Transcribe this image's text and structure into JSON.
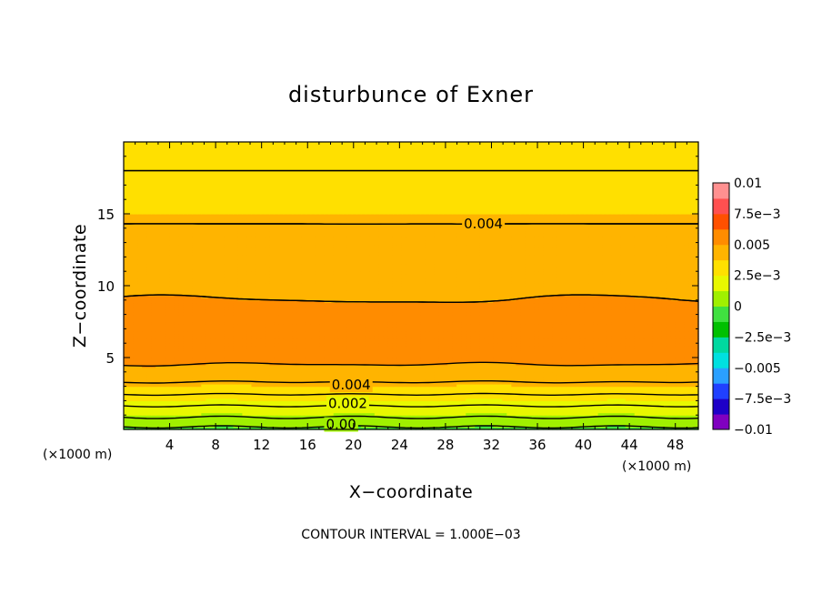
{
  "chart_data": {
    "type": "contour",
    "title": "disturbunce of Exner",
    "xlabel": "X−coordinate",
    "ylabel": "Z−coordinate",
    "x_unit": "(×1000 m)",
    "y_unit": "(×1000 m)",
    "xlim": [
      0,
      50
    ],
    "ylim": [
      0,
      20
    ],
    "x_ticks": [
      4,
      8,
      12,
      16,
      20,
      24,
      28,
      32,
      36,
      40,
      44,
      48
    ],
    "y_ticks": [
      5,
      10,
      15
    ],
    "contour_interval_text": "CONTOUR INTERVAL = 1.000E−03",
    "colorbar": {
      "labels": [
        "0.01",
        "7.5e−3",
        "0.005",
        "2.5e−3",
        "0",
        "−2.5e−3",
        "−0.005",
        "−7.5e−3",
        "−0.01"
      ],
      "values": [
        0.01,
        0.0075,
        0.005,
        0.0025,
        0,
        -0.0025,
        -0.005,
        -0.0075,
        -0.01
      ],
      "range": [
        -0.01,
        0.01
      ],
      "levels": 16
    },
    "contour_labels": [
      {
        "text": "0.004",
        "x": 29.6,
        "z": 14.3
      },
      {
        "text": "0.004",
        "x": 18.1,
        "z": 3.1
      },
      {
        "text": "0.002",
        "x": 17.8,
        "z": 1.8
      },
      {
        "text": "0.00",
        "x": 17.6,
        "z": 0.35
      }
    ],
    "profile": {
      "z": [
        0,
        0.3,
        0.6,
        1.0,
        1.4,
        1.8,
        2.2,
        2.6,
        3.0,
        3.5,
        4.0,
        4.8,
        5.5,
        6.2,
        7.0,
        8.0,
        9.0,
        10.5,
        11.5,
        12.5,
        13.5,
        14.3,
        15.5,
        17.0,
        18.0,
        19.0,
        20.0
      ],
      "value": [
        -0.0003,
        0.0002,
        0.0007,
        0.0012,
        0.0017,
        0.0022,
        0.0027,
        0.0032,
        0.0037,
        0.0042,
        0.0046,
        0.0052,
        0.0057,
        0.0058,
        0.0056,
        0.0053,
        0.005,
        0.0047,
        0.0045,
        0.0044,
        0.0042,
        0.004,
        0.0036,
        0.0032,
        0.003,
        0.0028,
        0.0026
      ]
    },
    "grid": false
  }
}
